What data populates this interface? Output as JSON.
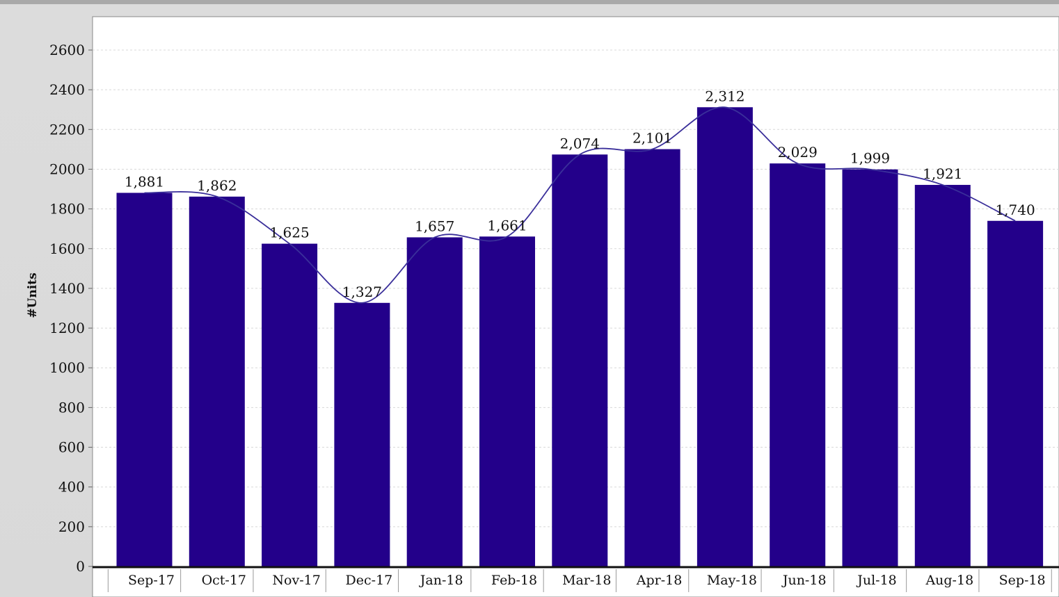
{
  "chart_data": {
    "type": "bar",
    "ylabel": "#Units",
    "categories": [
      "Sep-17",
      "Oct-17",
      "Nov-17",
      "Dec-17",
      "Jan-18",
      "Feb-18",
      "Mar-18",
      "Apr-18",
      "May-18",
      "Jun-18",
      "Jul-18",
      "Aug-18",
      "Sep-18"
    ],
    "values": [
      1881,
      1862,
      1625,
      1327,
      1657,
      1661,
      2074,
      2101,
      2312,
      2029,
      1999,
      1921,
      1740
    ],
    "value_labels": [
      "1,881",
      "1,862",
      "1,625",
      "1,327",
      "1,657",
      "1,661",
      "2,074",
      "2,101",
      "2,312",
      "2,029",
      "1,999",
      "1,921",
      "1,740"
    ],
    "ylim": [
      0,
      2600
    ],
    "yticks": [
      0,
      200,
      400,
      600,
      800,
      1000,
      1200,
      1400,
      1600,
      1800,
      2000,
      2200,
      2400,
      2600
    ],
    "grid": true,
    "trendline": true,
    "colors": {
      "bar": "#23008a",
      "trend": "#3a2f9a",
      "grid": "#d8d8d8",
      "plot_bg": "#ffffff"
    }
  }
}
